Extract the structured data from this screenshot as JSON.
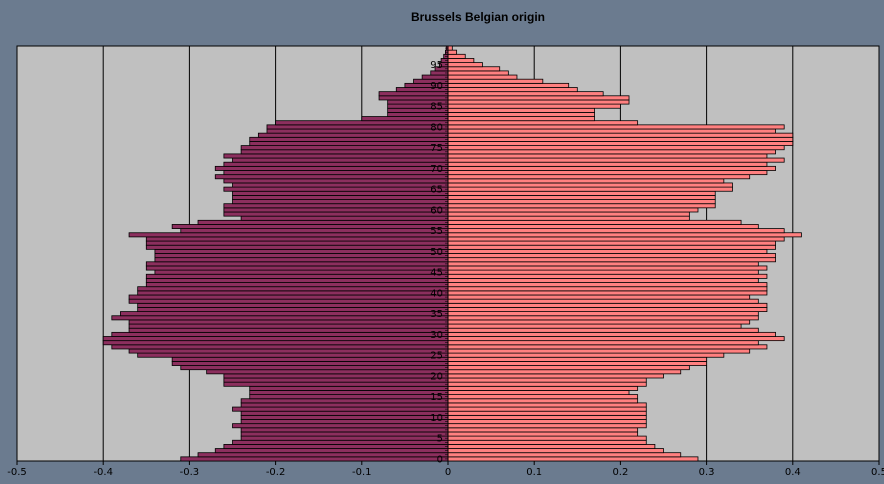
{
  "chart_data": {
    "type": "bar",
    "orientation": "horizontal",
    "title": "Brussels Belgian origin",
    "xlabel": "",
    "ylabel": "",
    "xlim": [
      -0.5,
      0.5
    ],
    "x_ticks": [
      "-0.5",
      "-0.4",
      "-0.3",
      "-0.2",
      "-0.1",
      "0",
      "0.1",
      "0.2",
      "0.3",
      "0.4",
      "0.5"
    ],
    "y_ticks": [
      "0",
      "5",
      "10",
      "15",
      "20",
      "25",
      "30",
      "35",
      "40",
      "45",
      "50",
      "55",
      "60",
      "65",
      "70",
      "75",
      "80",
      "85",
      "90",
      "95"
    ],
    "categories": [
      0,
      1,
      2,
      3,
      4,
      5,
      6,
      7,
      8,
      9,
      10,
      11,
      12,
      13,
      14,
      15,
      16,
      17,
      18,
      19,
      20,
      21,
      22,
      23,
      24,
      25,
      26,
      27,
      28,
      29,
      30,
      31,
      32,
      33,
      34,
      35,
      36,
      37,
      38,
      39,
      40,
      41,
      42,
      43,
      44,
      45,
      46,
      47,
      48,
      49,
      50,
      51,
      52,
      53,
      54,
      55,
      56,
      57,
      58,
      59,
      60,
      61,
      62,
      63,
      64,
      65,
      66,
      67,
      68,
      69,
      70,
      71,
      72,
      73,
      74,
      75,
      76,
      77,
      78,
      79,
      80,
      81,
      82,
      83,
      84,
      85,
      86,
      87,
      88,
      89,
      90,
      91,
      92,
      93,
      94,
      95,
      96,
      97,
      98,
      99
    ],
    "grid": {
      "vertical": true,
      "horizontal": false
    },
    "legend": "none",
    "colors": {
      "background": "#6b7b8f",
      "plot_area": "#c0c0c0",
      "male": "#8c2f5e",
      "female": "#ff8080",
      "gridline": "#000000",
      "bar_edge": "#000000"
    },
    "series": [
      {
        "values": [
          -0.31,
          -0.29,
          -0.27,
          -0.26,
          -0.25,
          -0.24,
          -0.24,
          -0.24,
          -0.25,
          -0.24,
          -0.24,
          -0.24,
          -0.25,
          -0.24,
          -0.24,
          -0.23,
          -0.23,
          -0.23,
          -0.26,
          -0.26,
          -0.26,
          -0.28,
          -0.31,
          -0.32,
          -0.32,
          -0.36,
          -0.37,
          -0.39,
          -0.4,
          -0.4,
          -0.39,
          -0.37,
          -0.37,
          -0.37,
          -0.39,
          -0.38,
          -0.36,
          -0.36,
          -0.37,
          -0.37,
          -0.36,
          -0.36,
          -0.35,
          -0.35,
          -0.35,
          -0.34,
          -0.35,
          -0.35,
          -0.34,
          -0.34,
          -0.34,
          -0.35,
          -0.35,
          -0.35,
          -0.37,
          -0.31,
          -0.32,
          -0.29,
          -0.24,
          -0.26,
          -0.26,
          -0.26,
          -0.25,
          -0.25,
          -0.25,
          -0.26,
          -0.25,
          -0.26,
          -0.27,
          -0.26,
          -0.27,
          -0.26,
          -0.25,
          -0.26,
          -0.24,
          -0.24,
          -0.23,
          -0.23,
          -0.22,
          -0.21,
          -0.21,
          -0.2,
          -0.1,
          -0.07,
          -0.07,
          -0.07,
          -0.07,
          -0.08,
          -0.08,
          -0.06,
          -0.05,
          -0.04,
          -0.03,
          -0.02,
          -0.015,
          -0.01,
          -0.008,
          -0.005,
          -0.003,
          -0.002
        ]
      },
      {
        "values": [
          0.29,
          0.27,
          0.25,
          0.24,
          0.23,
          0.23,
          0.22,
          0.22,
          0.23,
          0.23,
          0.23,
          0.23,
          0.23,
          0.23,
          0.22,
          0.22,
          0.21,
          0.22,
          0.23,
          0.23,
          0.25,
          0.27,
          0.28,
          0.3,
          0.3,
          0.32,
          0.35,
          0.37,
          0.36,
          0.39,
          0.38,
          0.36,
          0.34,
          0.35,
          0.36,
          0.36,
          0.37,
          0.37,
          0.36,
          0.35,
          0.37,
          0.37,
          0.37,
          0.36,
          0.37,
          0.36,
          0.37,
          0.36,
          0.38,
          0.38,
          0.37,
          0.38,
          0.38,
          0.39,
          0.41,
          0.39,
          0.36,
          0.34,
          0.28,
          0.28,
          0.29,
          0.31,
          0.31,
          0.31,
          0.31,
          0.33,
          0.33,
          0.32,
          0.35,
          0.37,
          0.38,
          0.37,
          0.39,
          0.37,
          0.38,
          0.39,
          0.4,
          0.4,
          0.4,
          0.38,
          0.39,
          0.22,
          0.17,
          0.17,
          0.17,
          0.2,
          0.21,
          0.21,
          0.18,
          0.15,
          0.14,
          0.11,
          0.08,
          0.07,
          0.06,
          0.04,
          0.03,
          0.02,
          0.01,
          0.005
        ]
      }
    ]
  }
}
